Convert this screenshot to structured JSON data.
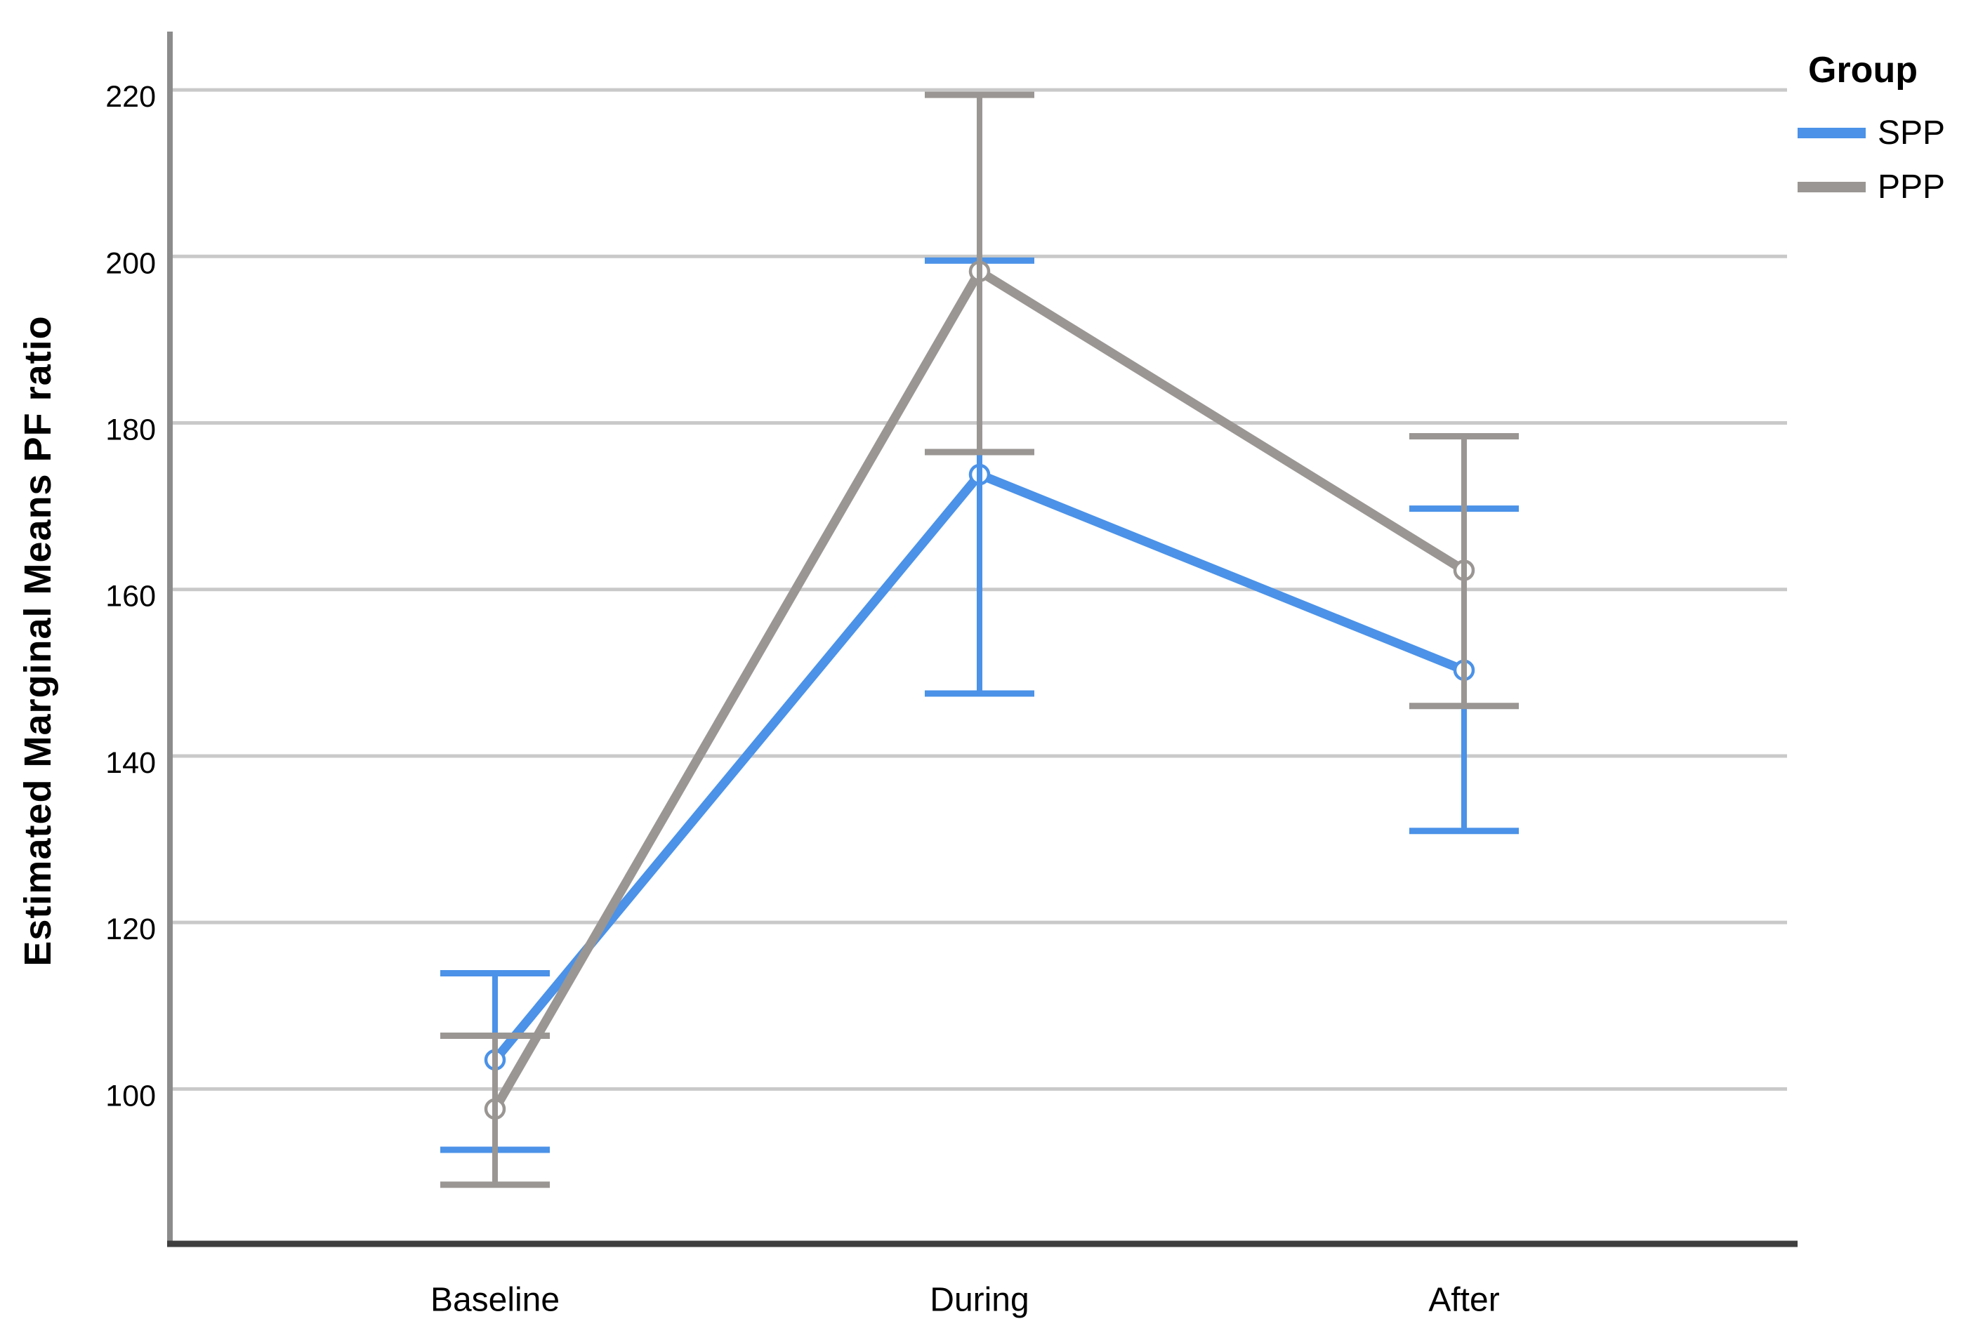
{
  "figure": {
    "ylabel": "Estimated Marginal Means PF ratio",
    "legend": {
      "title": "Group",
      "items": [
        {
          "label": "SPP",
          "color": "#4B92E8"
        },
        {
          "label": "PPP",
          "color": "#9A9693"
        }
      ]
    }
  },
  "chart_data": {
    "type": "line",
    "title": "",
    "xlabel": "",
    "ylabel": "Estimated Marginal Means PF ratio",
    "categories": [
      "Baseline",
      "During",
      "After"
    ],
    "series": [
      {
        "name": "SPP",
        "color": "#4B92E8",
        "means": [
          103.5,
          173.8,
          150.3
        ],
        "ci_lower": [
          92.7,
          147.5,
          131.0
        ],
        "ci_upper": [
          113.9,
          199.5,
          169.7
        ]
      },
      {
        "name": "PPP",
        "color": "#9A9693",
        "means": [
          97.6,
          198.2,
          162.3
        ],
        "ci_lower": [
          88.5,
          176.5,
          146.0
        ],
        "ci_upper": [
          106.4,
          219.4,
          178.4
        ]
      }
    ],
    "yticks": [
      100,
      120,
      140,
      160,
      180,
      200,
      220
    ],
    "ylim": [
      81,
      227
    ],
    "grid": "horizontal-only",
    "legend_title": "Group",
    "legend_position": "top-right",
    "error_bars": "confidence-interval",
    "marker": "open-circle",
    "colors": {
      "gridline": "#C9C9C9",
      "y_axis_line": "#8C8C8C",
      "x_axis_line": "#3F3F3F",
      "tick_label": "#000000"
    }
  }
}
